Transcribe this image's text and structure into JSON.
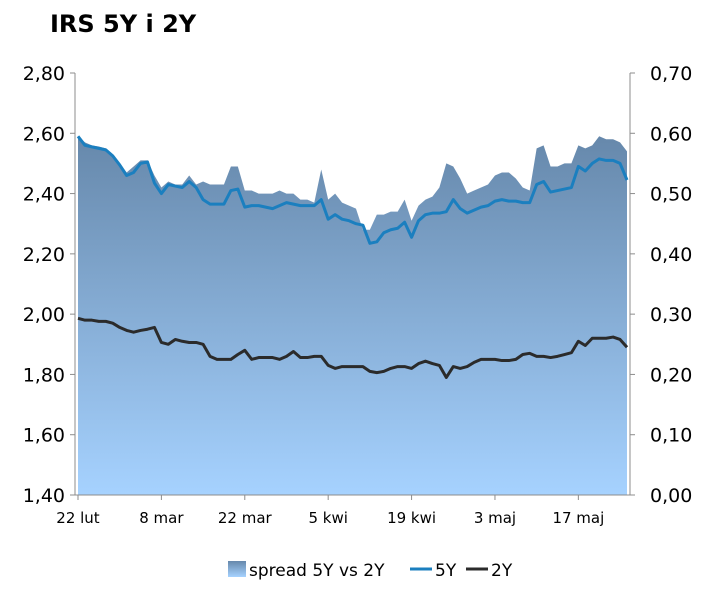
{
  "chart_data": {
    "type": "area+line",
    "title": "IRS 5Y i 2Y",
    "left_axis": {
      "min": 1.4,
      "max": 2.8,
      "step": 0.2,
      "ticks": [
        "1,40",
        "1,60",
        "1,80",
        "2,00",
        "2,20",
        "2,40",
        "2,60",
        "2,80"
      ]
    },
    "right_axis": {
      "min": 0.0,
      "max": 0.7,
      "step": 0.1,
      "ticks": [
        "0,00",
        "0,10",
        "0,20",
        "0,30",
        "0,40",
        "0,50",
        "0,60",
        "0,70"
      ]
    },
    "x_labels": [
      "22 lut",
      "8 mar",
      "22 mar",
      "5 kwi",
      "19 kwi",
      "3 maj",
      "17 maj"
    ],
    "x_label_indices": [
      0,
      12,
      24,
      36,
      48,
      60,
      72
    ],
    "n_points": 80,
    "series": [
      {
        "name": "spread 5Y vs 2Y",
        "axis": "right",
        "type": "area",
        "color_top": "#6688ab",
        "color_bottom": "#a6d2ff",
        "values": [
          0.595,
          0.585,
          0.58,
          0.578,
          0.575,
          0.565,
          0.55,
          0.535,
          0.545,
          0.555,
          0.555,
          0.53,
          0.51,
          0.52,
          0.515,
          0.515,
          0.53,
          0.515,
          0.52,
          0.515,
          0.515,
          0.515,
          0.545,
          0.545,
          0.505,
          0.505,
          0.5,
          0.5,
          0.5,
          0.505,
          0.5,
          0.5,
          0.49,
          0.49,
          0.485,
          0.54,
          0.49,
          0.5,
          0.485,
          0.48,
          0.475,
          0.44,
          0.44,
          0.465,
          0.465,
          0.47,
          0.47,
          0.49,
          0.455,
          0.48,
          0.49,
          0.495,
          0.51,
          0.55,
          0.545,
          0.525,
          0.5,
          0.505,
          0.51,
          0.515,
          0.53,
          0.535,
          0.535,
          0.525,
          0.51,
          0.505,
          0.575,
          0.58,
          0.545,
          0.545,
          0.55,
          0.55,
          0.58,
          0.575,
          0.58,
          0.595,
          0.59,
          0.59,
          0.585,
          0.57
        ]
      },
      {
        "name": "5Y",
        "axis": "left",
        "type": "line",
        "color": "#1b7fbf",
        "values": [
          2.59,
          2.56,
          2.555,
          2.55,
          2.545,
          2.525,
          2.495,
          2.46,
          2.47,
          2.5,
          2.505,
          2.435,
          2.4,
          2.43,
          2.425,
          2.42,
          2.44,
          2.42,
          2.38,
          2.365,
          2.365,
          2.365,
          2.41,
          2.415,
          2.355,
          2.36,
          2.36,
          2.355,
          2.35,
          2.36,
          2.37,
          2.365,
          2.36,
          2.36,
          2.36,
          2.38,
          2.315,
          2.33,
          2.315,
          2.31,
          2.3,
          2.295,
          2.235,
          2.24,
          2.27,
          2.28,
          2.285,
          2.305,
          2.255,
          2.31,
          2.33,
          2.335,
          2.335,
          2.34,
          2.38,
          2.35,
          2.335,
          2.345,
          2.355,
          2.36,
          2.375,
          2.38,
          2.375,
          2.375,
          2.37,
          2.37,
          2.43,
          2.44,
          2.405,
          2.41,
          2.415,
          2.42,
          2.49,
          2.475,
          2.5,
          2.515,
          2.51,
          2.51,
          2.5,
          2.445
        ]
      },
      {
        "name": "2Y",
        "axis": "right",
        "type": "line",
        "color": "#2b2b2b",
        "values": [
          0.293,
          0.29,
          0.29,
          0.288,
          0.288,
          0.285,
          0.278,
          0.273,
          0.27,
          0.273,
          0.275,
          0.278,
          0.253,
          0.25,
          0.258,
          0.255,
          0.253,
          0.253,
          0.25,
          0.23,
          0.225,
          0.225,
          0.225,
          0.233,
          0.24,
          0.225,
          0.228,
          0.228,
          0.228,
          0.225,
          0.23,
          0.238,
          0.228,
          0.228,
          0.23,
          0.23,
          0.215,
          0.21,
          0.213,
          0.213,
          0.213,
          0.213,
          0.205,
          0.203,
          0.205,
          0.21,
          0.213,
          0.213,
          0.21,
          0.218,
          0.222,
          0.218,
          0.215,
          0.195,
          0.213,
          0.21,
          0.213,
          0.22,
          0.225,
          0.225,
          0.225,
          0.223,
          0.223,
          0.225,
          0.233,
          0.235,
          0.23,
          0.23,
          0.228,
          0.23,
          0.233,
          0.236,
          0.255,
          0.248,
          0.26,
          0.26,
          0.26,
          0.262,
          0.258,
          0.245
        ]
      }
    ],
    "legend": {
      "position": "bottom",
      "items": [
        "spread 5Y vs 2Y",
        "5Y",
        "2Y"
      ]
    },
    "grid": false
  }
}
